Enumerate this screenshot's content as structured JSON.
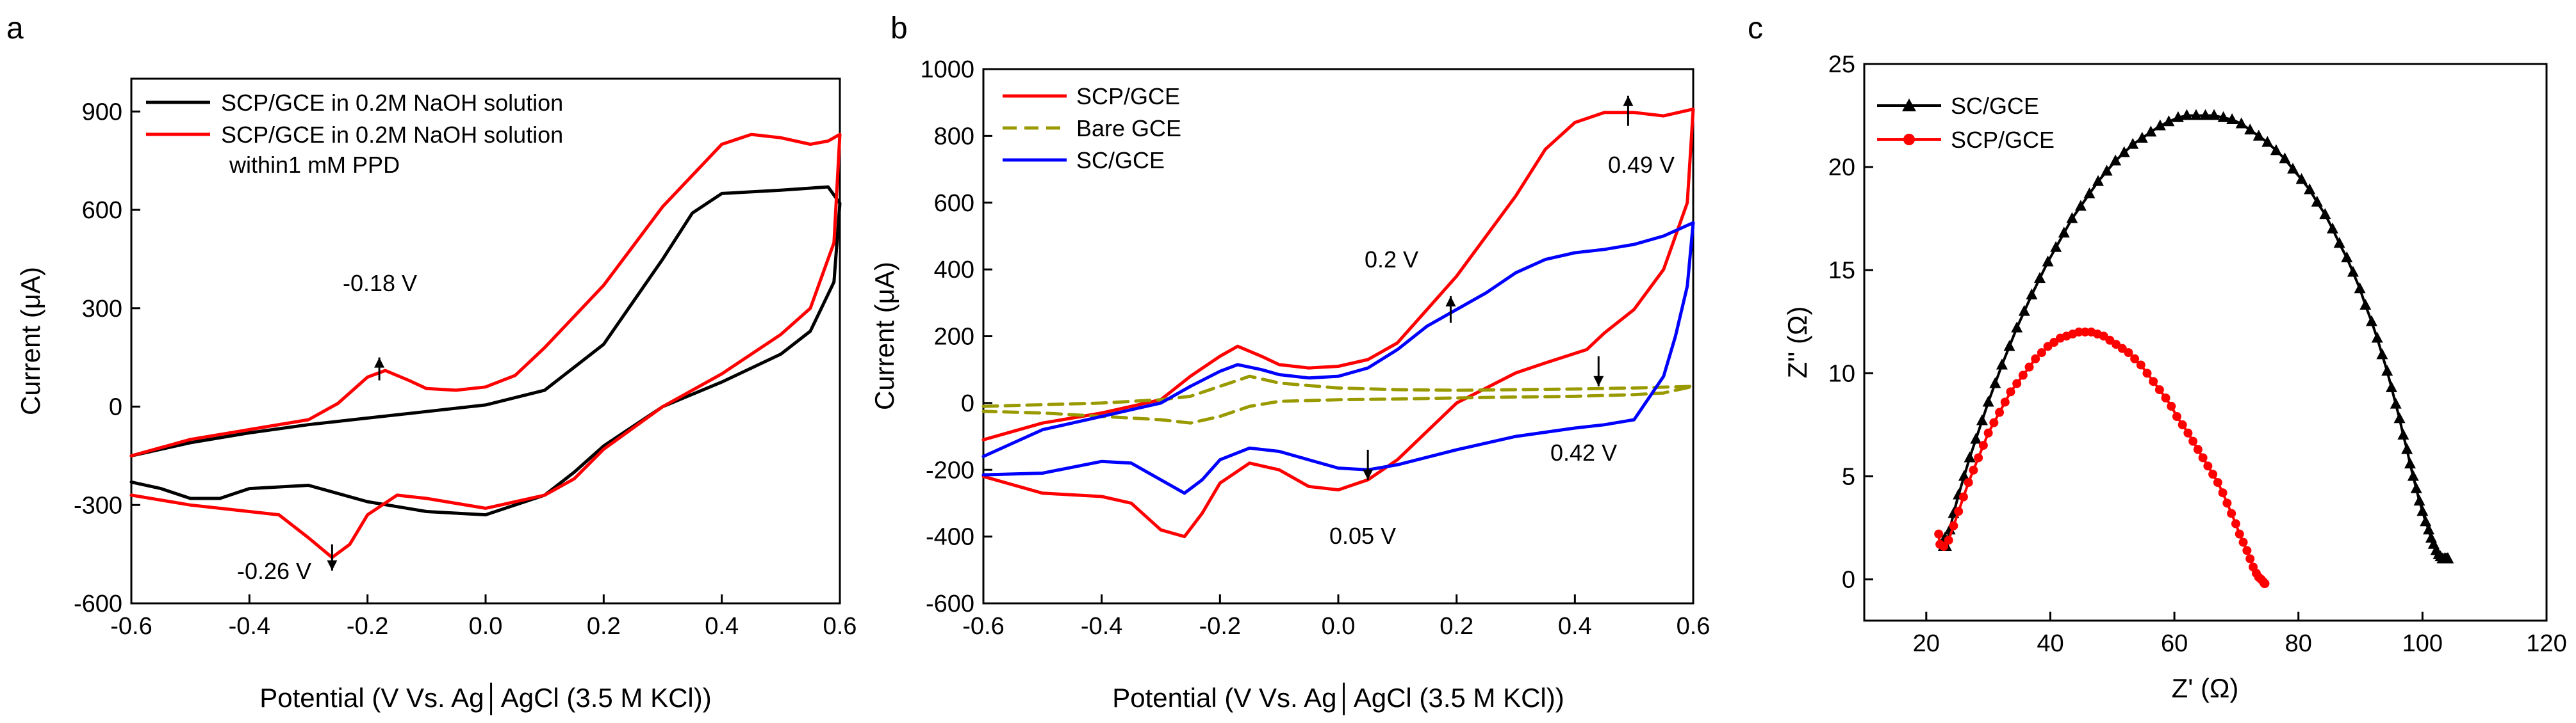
{
  "figure": {
    "panels": [
      {
        "letter": "a",
        "axes": {
          "xlabel": "Potential (V Vs. Ag│AgCl (3.5 M KCl))",
          "ylabel": "Current (μA)",
          "xlim": [
            -0.6,
            0.6
          ],
          "ylim": [
            -600,
            1000
          ],
          "xticks": [
            -0.6,
            -0.4,
            -0.2,
            0.0,
            0.2,
            0.4,
            0.6
          ],
          "xtick_labels": [
            "-0.6",
            "-0.4",
            "-0.2",
            "0.0",
            "0.2",
            "0.4",
            "0.6"
          ],
          "yticks": [
            -600,
            -300,
            0,
            300,
            600,
            900
          ],
          "ytick_labels": [
            "-600",
            "-300",
            "0",
            "300",
            "600",
            "900"
          ]
        },
        "legend": {
          "placement": "top-left",
          "items": [
            {
              "label": "SCP/GCE in 0.2M NaOH solution",
              "color": "#000000",
              "dash": "solid",
              "label2": ""
            },
            {
              "label": "SCP/GCE in 0.2M NaOH solution",
              "color": "#ff0000",
              "dash": "solid",
              "label2": "within1 mM PPD"
            }
          ]
        },
        "annotations": [
          {
            "text": "-0.18 V",
            "arrow_x": -0.18,
            "arrow_from": 80,
            "arrow_to": 150
          },
          {
            "text": "-0.26 V",
            "arrow_x": -0.26,
            "arrow_from": -420,
            "arrow_to": -500
          }
        ]
      },
      {
        "letter": "b",
        "axes": {
          "xlabel": "Potential (V Vs. Ag│AgCl (3.5 M KCl))",
          "ylabel": "Current (μA)",
          "xlim": [
            -0.6,
            0.6
          ],
          "ylim": [
            -600,
            1000
          ],
          "xticks": [
            -0.6,
            -0.4,
            -0.2,
            0.0,
            0.2,
            0.4,
            0.6
          ],
          "xtick_labels": [
            "-0.6",
            "-0.4",
            "-0.2",
            "0.0",
            "0.2",
            "0.4",
            "0.6"
          ],
          "yticks": [
            -600,
            -400,
            -200,
            0,
            200,
            400,
            600,
            800,
            1000
          ],
          "ytick_labels": [
            "-600",
            "-400",
            "-200",
            "0",
            "200",
            "400",
            "600",
            "800",
            "1000"
          ]
        },
        "legend": {
          "placement": "top-left",
          "items": [
            {
              "label": "SCP/GCE",
              "color": "#ff0000",
              "dash": "solid"
            },
            {
              "label": "Bare GCE",
              "color": "#999900",
              "dash": "dashed"
            },
            {
              "label": "SC/GCE",
              "color": "#0000ff",
              "dash": "solid"
            }
          ]
        },
        "annotations": [
          {
            "text": "0.49 V",
            "arrow_x": 0.49,
            "arrow_from": 830,
            "arrow_to": 920
          },
          {
            "text": "0.2 V",
            "arrow_x": 0.19,
            "arrow_from": 240,
            "arrow_to": 320
          },
          {
            "text": "0.42 V",
            "arrow_x": 0.44,
            "arrow_from": 140,
            "arrow_to": 50
          },
          {
            "text": "0.05 V",
            "arrow_x": 0.05,
            "arrow_from": -140,
            "arrow_to": -230
          }
        ]
      },
      {
        "letter": "c",
        "axes": {
          "xlabel": "Z' (Ω)",
          "ylabel": "Z'' (Ω)",
          "xlim": [
            10,
            120
          ],
          "ylim": [
            -2,
            25
          ],
          "xticks": [
            20,
            40,
            60,
            80,
            100,
            120
          ],
          "xtick_labels": [
            "20",
            "40",
            "60",
            "80",
            "100",
            "120"
          ],
          "yticks": [
            0,
            5,
            10,
            15,
            20,
            25
          ],
          "ytick_labels": [
            "0",
            "5",
            "10",
            "15",
            "20",
            "25"
          ]
        },
        "legend": {
          "placement": "top-left",
          "items": [
            {
              "label": "SC/GCE",
              "color": "#000000",
              "marker": "triangle"
            },
            {
              "label": "SCP/GCE",
              "color": "#ff0000",
              "marker": "circle"
            }
          ]
        }
      }
    ]
  },
  "chart_data": [
    {
      "type": "line",
      "panel": "a",
      "xlabel": "Potential (V Vs. Ag│AgCl (3.5 M KCl))",
      "ylabel": "Current (μA)",
      "xlim": [
        -0.6,
        0.6
      ],
      "ylim": [
        -600,
        1000
      ],
      "grid": false,
      "legend": "top-left",
      "series": [
        {
          "name": "SCP/GCE in 0.2M NaOH solution",
          "color": "#000000",
          "x": [
            -0.6,
            -0.5,
            -0.4,
            -0.3,
            -0.2,
            -0.1,
            0.0,
            0.1,
            0.2,
            0.3,
            0.35,
            0.4,
            0.5,
            0.58,
            0.6,
            0.59,
            0.55,
            0.5,
            0.4,
            0.3,
            0.2,
            0.15,
            0.1,
            0.0,
            -0.1,
            -0.2,
            -0.3,
            -0.4,
            -0.45,
            -0.5,
            -0.55,
            -0.6
          ],
          "y": [
            -150,
            -110,
            -80,
            -55,
            -35,
            -15,
            5,
            50,
            190,
            450,
            590,
            650,
            660,
            670,
            620,
            380,
            230,
            160,
            75,
            0,
            -120,
            -200,
            -270,
            -330,
            -320,
            -290,
            -240,
            -250,
            -280,
            -280,
            -250,
            -230
          ]
        },
        {
          "name": "SCP/GCE in 0.2M NaOH solution within1 mM PPD",
          "color": "#ff0000",
          "x": [
            -0.6,
            -0.5,
            -0.4,
            -0.3,
            -0.25,
            -0.2,
            -0.17,
            -0.13,
            -0.1,
            -0.05,
            0.0,
            0.05,
            0.1,
            0.2,
            0.3,
            0.4,
            0.45,
            0.5,
            0.55,
            0.58,
            0.6,
            0.59,
            0.55,
            0.5,
            0.4,
            0.3,
            0.2,
            0.15,
            0.1,
            0.0,
            -0.1,
            -0.15,
            -0.2,
            -0.23,
            -0.26,
            -0.3,
            -0.35,
            -0.4,
            -0.5,
            -0.6
          ],
          "y": [
            -150,
            -100,
            -70,
            -40,
            10,
            90,
            110,
            80,
            55,
            50,
            60,
            95,
            180,
            370,
            610,
            800,
            830,
            820,
            800,
            810,
            830,
            500,
            300,
            220,
            100,
            0,
            -130,
            -220,
            -270,
            -310,
            -280,
            -270,
            -330,
            -420,
            -460,
            -400,
            -330,
            -320,
            -300,
            -270
          ]
        }
      ]
    },
    {
      "type": "line",
      "panel": "b",
      "xlabel": "Potential (V Vs. Ag│AgCl (3.5 M KCl))",
      "ylabel": "Current (μA)",
      "xlim": [
        -0.6,
        0.6
      ],
      "ylim": [
        -600,
        1000
      ],
      "grid": false,
      "legend": "top-left",
      "series": [
        {
          "name": "SCP/GCE",
          "color": "#ff0000",
          "x": [
            -0.6,
            -0.5,
            -0.4,
            -0.3,
            -0.25,
            -0.2,
            -0.17,
            -0.13,
            -0.1,
            -0.05,
            0.0,
            0.05,
            0.1,
            0.2,
            0.3,
            0.35,
            0.4,
            0.45,
            0.5,
            0.55,
            0.6,
            0.59,
            0.55,
            0.5,
            0.45,
            0.42,
            0.35,
            0.3,
            0.2,
            0.1,
            0.05,
            0.0,
            -0.05,
            -0.1,
            -0.15,
            -0.2,
            -0.23,
            -0.26,
            -0.3,
            -0.35,
            -0.4,
            -0.5,
            -0.6
          ],
          "y": [
            -110,
            -60,
            -30,
            10,
            80,
            140,
            170,
            140,
            115,
            105,
            110,
            130,
            180,
            380,
            620,
            760,
            840,
            870,
            870,
            860,
            880,
            600,
            400,
            280,
            210,
            160,
            120,
            90,
            0,
            -170,
            -230,
            -260,
            -250,
            -200,
            -180,
            -240,
            -330,
            -400,
            -380,
            -300,
            -280,
            -270,
            -220
          ]
        },
        {
          "name": "Bare GCE",
          "color": "#999900",
          "x": [
            -0.6,
            -0.5,
            -0.4,
            -0.35,
            -0.3,
            -0.25,
            -0.2,
            -0.15,
            -0.1,
            0.0,
            0.1,
            0.2,
            0.3,
            0.4,
            0.5,
            0.6,
            0.55,
            0.5,
            0.4,
            0.3,
            0.2,
            0.1,
            0.0,
            -0.1,
            -0.15,
            -0.2,
            -0.25,
            -0.3,
            -0.4,
            -0.5,
            -0.6
          ],
          "y": [
            -10,
            -5,
            0,
            5,
            10,
            20,
            50,
            80,
            60,
            45,
            40,
            38,
            40,
            42,
            45,
            50,
            30,
            25,
            20,
            18,
            15,
            12,
            10,
            5,
            -10,
            -40,
            -60,
            -50,
            -40,
            -30,
            -25
          ]
        },
        {
          "name": "SC/GCE",
          "color": "#0000ff",
          "x": [
            -0.6,
            -0.5,
            -0.4,
            -0.3,
            -0.25,
            -0.2,
            -0.17,
            -0.13,
            -0.1,
            -0.05,
            0.0,
            0.05,
            0.1,
            0.15,
            0.2,
            0.25,
            0.3,
            0.35,
            0.4,
            0.45,
            0.5,
            0.55,
            0.6,
            0.59,
            0.57,
            0.55,
            0.5,
            0.45,
            0.4,
            0.3,
            0.2,
            0.1,
            0.05,
            0.0,
            -0.05,
            -0.1,
            -0.15,
            -0.2,
            -0.23,
            -0.26,
            -0.3,
            -0.35,
            -0.4,
            -0.5,
            -0.6
          ],
          "y": [
            -160,
            -80,
            -40,
            0,
            50,
            95,
            115,
            100,
            85,
            75,
            80,
            105,
            160,
            230,
            280,
            330,
            390,
            430,
            450,
            460,
            475,
            500,
            540,
            350,
            200,
            80,
            -50,
            -65,
            -75,
            -100,
            -140,
            -185,
            -200,
            -195,
            -170,
            -145,
            -135,
            -170,
            -230,
            -270,
            -230,
            -180,
            -175,
            -210,
            -215
          ]
        }
      ]
    },
    {
      "type": "scatter",
      "panel": "c",
      "xlabel": "Z' (Ω)",
      "ylabel": "Z'' (Ω)",
      "xlim": [
        10,
        120
      ],
      "ylim": [
        -2,
        25
      ],
      "grid": false,
      "legend": "top-left",
      "series": [
        {
          "name": "SC/GCE",
          "color": "#000000",
          "marker": "triangle",
          "x": [
            23.0,
            22.8,
            23.2,
            23.8,
            24.4,
            25.2,
            26.1,
            27.0,
            28.0,
            29.0,
            30.0,
            31.1,
            32.2,
            33.4,
            34.6,
            35.8,
            37.0,
            38.3,
            39.6,
            40.9,
            42.2,
            43.5,
            44.9,
            46.3,
            47.7,
            49.1,
            50.5,
            51.9,
            53.3,
            54.8,
            56.2,
            57.7,
            59.1,
            60.6,
            62.0,
            63.5,
            65.0,
            66.4,
            67.9,
            69.3,
            70.8,
            72.2,
            73.6,
            75.0,
            76.4,
            77.8,
            79.1,
            80.5,
            81.8,
            83.0,
            84.3,
            85.5,
            86.6,
            87.8,
            88.8,
            89.9,
            90.8,
            91.8,
            92.7,
            93.5,
            94.3,
            95.0,
            95.7,
            96.3,
            96.9,
            97.5,
            98.0,
            98.5,
            99.0,
            99.5,
            100.0,
            100.5,
            101.0,
            101.4,
            101.8,
            102.2,
            102.6,
            102.9,
            103.2,
            103.5,
            103.7,
            103.9,
            104.0,
            104.1,
            104.1,
            104.1,
            104.1
          ],
          "y": [
            2.0,
            1.6,
            1.6,
            2.4,
            3.2,
            4.1,
            5.0,
            5.9,
            6.8,
            7.7,
            8.6,
            9.5,
            10.4,
            11.3,
            12.2,
            13.0,
            13.8,
            14.6,
            15.4,
            16.1,
            16.8,
            17.5,
            18.1,
            18.7,
            19.3,
            19.8,
            20.3,
            20.7,
            21.1,
            21.4,
            21.7,
            22.0,
            22.2,
            22.4,
            22.5,
            22.5,
            22.5,
            22.5,
            22.4,
            22.3,
            22.1,
            21.8,
            21.5,
            21.2,
            20.8,
            20.4,
            19.9,
            19.4,
            18.9,
            18.3,
            17.7,
            17.0,
            16.3,
            15.6,
            14.9,
            14.1,
            13.3,
            12.5,
            11.7,
            10.9,
            10.1,
            9.3,
            8.5,
            7.8,
            7.0,
            6.3,
            5.6,
            5.0,
            4.4,
            3.8,
            3.3,
            2.8,
            2.4,
            2.0,
            1.7,
            1.4,
            1.2,
            1.1,
            1.0,
            1.0,
            1.0,
            1.0,
            1.0,
            1.0,
            1.0,
            1.0,
            1.0
          ]
        },
        {
          "name": "SCP/GCE",
          "color": "#ff0000",
          "marker": "circle",
          "x": [
            22.0,
            22.2,
            22.8,
            23.6,
            24.4,
            25.2,
            26.0,
            26.8,
            27.6,
            28.4,
            29.2,
            30.0,
            30.9,
            31.8,
            32.7,
            33.6,
            34.6,
            35.6,
            36.6,
            37.6,
            38.6,
            39.6,
            40.6,
            41.6,
            42.6,
            43.6,
            44.6,
            45.6,
            46.6,
            47.6,
            48.6,
            49.6,
            50.6,
            51.6,
            52.6,
            53.6,
            54.6,
            55.6,
            56.6,
            57.6,
            58.6,
            59.5,
            60.4,
            61.3,
            62.2,
            63.0,
            63.8,
            64.6,
            65.4,
            66.2,
            67.0,
            67.8,
            68.5,
            69.2,
            69.9,
            70.5,
            71.1,
            71.7,
            72.2,
            72.7,
            73.2,
            73.6,
            74.0,
            74.3,
            74.5,
            74.6
          ],
          "y": [
            2.2,
            1.7,
            1.6,
            1.9,
            2.6,
            3.3,
            4.0,
            4.7,
            5.3,
            5.9,
            6.5,
            7.1,
            7.6,
            8.1,
            8.6,
            9.1,
            9.5,
            9.9,
            10.3,
            10.7,
            11.0,
            11.3,
            11.5,
            11.7,
            11.8,
            11.9,
            12.0,
            12.0,
            12.0,
            11.9,
            11.8,
            11.6,
            11.4,
            11.2,
            11.0,
            10.7,
            10.4,
            10.0,
            9.6,
            9.2,
            8.8,
            8.4,
            7.9,
            7.5,
            7.1,
            6.7,
            6.3,
            5.9,
            5.5,
            5.1,
            4.7,
            4.2,
            3.7,
            3.2,
            2.7,
            2.2,
            1.8,
            1.4,
            1.0,
            0.6,
            0.3,
            0.1,
            0.0,
            -0.1,
            -0.2,
            -0.2
          ]
        }
      ]
    }
  ]
}
